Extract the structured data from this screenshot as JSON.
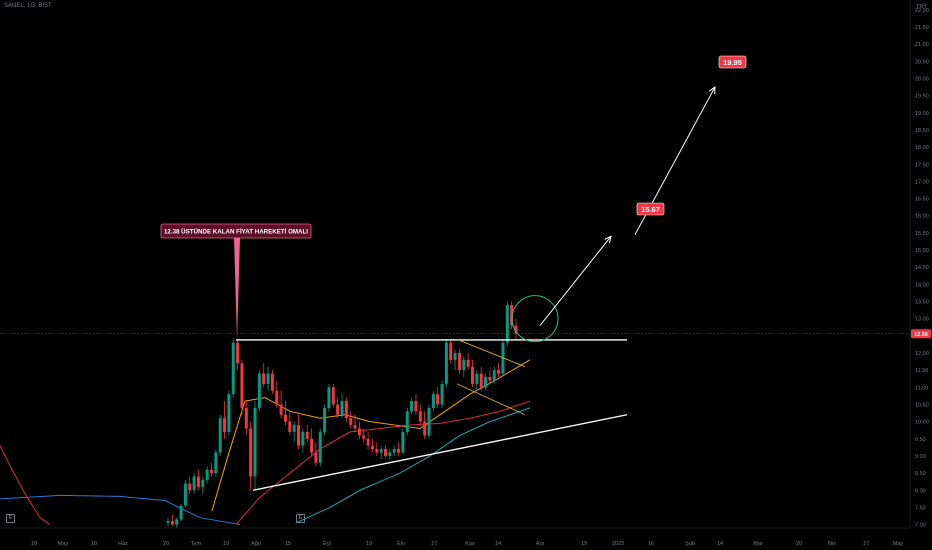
{
  "symbol_label": "SANEL, 1G, BIST",
  "currency": "TRY",
  "colors": {
    "background": "#000000",
    "axis_text": "#787b86",
    "candle_up": "#089981",
    "candle_down": "#f23645",
    "ma_short": "#f7a600",
    "ma_mid": "#e0294a",
    "ma_teal": "#1aa7b0",
    "ma_long": "#2b7bd6",
    "drawing": "#ffffff",
    "wedge": "#d9a62e",
    "circle": "#2bbf8f",
    "callout_bg": "#5c0f28",
    "callout_border": "#f06292",
    "target_bg": "#f23645",
    "price_line": "#f23645"
  },
  "chart_data": {
    "type": "candlestick",
    "y_axis": {
      "min": 6.9,
      "max": 22.2,
      "ticks": [
        "7.00",
        "7.50",
        "8.00",
        "8.50",
        "9.00",
        "9.50",
        "10.00",
        "10.50",
        "11.00",
        "11.50",
        "12.00",
        "12.50",
        "13.00",
        "13.50",
        "14.00",
        "14.50",
        "15.00",
        "15.50",
        "16.00",
        "16.50",
        "17.00",
        "17.50",
        "18.00",
        "18.50",
        "19.00",
        "19.50",
        "20.00",
        "20.50",
        "21.00",
        "21.50",
        "22.00"
      ]
    },
    "x_axis_labels": [
      "18",
      "May",
      "18",
      "Haz",
      "20",
      "Tem",
      "19",
      "Ağu",
      "15",
      "Eyl",
      "19",
      "Eki",
      "17",
      "Kas",
      "14",
      "Ara",
      "19",
      "2023",
      "16",
      "Şub",
      "14",
      "Mar",
      "20",
      "Nis",
      "17",
      "May"
    ],
    "last_price": "12.56",
    "callout_text": "12.38 ÜSTÜNDE KALAN FİYAT HAREKETİ OMALI",
    "targets": [
      "15.67",
      "19.95"
    ],
    "candles": [
      {
        "o": 7.05,
        "h": 7.2,
        "l": 6.95,
        "c": 7.1
      },
      {
        "o": 7.1,
        "h": 7.3,
        "l": 6.95,
        "c": 7.0
      },
      {
        "o": 7.0,
        "h": 7.2,
        "l": 6.92,
        "c": 7.15
      },
      {
        "o": 7.15,
        "h": 7.6,
        "l": 7.1,
        "c": 7.55
      },
      {
        "o": 7.55,
        "h": 8.3,
        "l": 7.5,
        "c": 8.2
      },
      {
        "o": 8.2,
        "h": 8.4,
        "l": 7.9,
        "c": 8.0
      },
      {
        "o": 8.0,
        "h": 8.5,
        "l": 7.9,
        "c": 8.4
      },
      {
        "o": 8.4,
        "h": 8.6,
        "l": 8.0,
        "c": 8.1
      },
      {
        "o": 8.1,
        "h": 8.4,
        "l": 7.9,
        "c": 8.3
      },
      {
        "o": 8.3,
        "h": 8.7,
        "l": 8.2,
        "c": 8.6
      },
      {
        "o": 8.6,
        "h": 8.8,
        "l": 8.4,
        "c": 8.5
      },
      {
        "o": 8.5,
        "h": 9.2,
        "l": 8.4,
        "c": 9.1
      },
      {
        "o": 9.1,
        "h": 10.2,
        "l": 9.0,
        "c": 10.1
      },
      {
        "o": 10.1,
        "h": 10.6,
        "l": 9.5,
        "c": 9.7
      },
      {
        "o": 9.7,
        "h": 10.9,
        "l": 9.6,
        "c": 10.8
      },
      {
        "o": 10.8,
        "h": 12.4,
        "l": 10.7,
        "c": 12.3
      },
      {
        "o": 12.3,
        "h": 12.4,
        "l": 11.5,
        "c": 11.7
      },
      {
        "o": 11.7,
        "h": 11.8,
        "l": 10.2,
        "c": 10.4
      },
      {
        "o": 10.4,
        "h": 10.6,
        "l": 9.6,
        "c": 9.8
      },
      {
        "o": 9.8,
        "h": 10.0,
        "l": 8.0,
        "c": 8.4
      },
      {
        "o": 8.4,
        "h": 10.6,
        "l": 8.0,
        "c": 10.4
      },
      {
        "o": 10.4,
        "h": 11.5,
        "l": 10.3,
        "c": 11.4
      },
      {
        "o": 11.4,
        "h": 11.7,
        "l": 11.0,
        "c": 11.1
      },
      {
        "o": 11.1,
        "h": 11.6,
        "l": 10.9,
        "c": 11.4
      },
      {
        "o": 11.4,
        "h": 11.5,
        "l": 10.8,
        "c": 10.9
      },
      {
        "o": 10.9,
        "h": 11.2,
        "l": 10.4,
        "c": 10.5
      },
      {
        "o": 10.5,
        "h": 10.9,
        "l": 10.1,
        "c": 10.2
      },
      {
        "o": 10.2,
        "h": 10.6,
        "l": 9.9,
        "c": 10.0
      },
      {
        "o": 10.0,
        "h": 10.3,
        "l": 9.6,
        "c": 9.7
      },
      {
        "o": 9.7,
        "h": 10.0,
        "l": 9.4,
        "c": 9.9
      },
      {
        "o": 9.9,
        "h": 10.2,
        "l": 9.2,
        "c": 9.3
      },
      {
        "o": 9.3,
        "h": 9.8,
        "l": 9.1,
        "c": 9.7
      },
      {
        "o": 9.7,
        "h": 9.9,
        "l": 9.4,
        "c": 9.5
      },
      {
        "o": 9.5,
        "h": 9.8,
        "l": 9.0,
        "c": 9.1
      },
      {
        "o": 9.1,
        "h": 9.4,
        "l": 8.7,
        "c": 8.8
      },
      {
        "o": 8.8,
        "h": 9.8,
        "l": 8.7,
        "c": 9.7
      },
      {
        "o": 9.7,
        "h": 10.5,
        "l": 9.6,
        "c": 10.4
      },
      {
        "o": 10.4,
        "h": 11.1,
        "l": 10.3,
        "c": 11.0
      },
      {
        "o": 11.0,
        "h": 11.1,
        "l": 10.4,
        "c": 10.5
      },
      {
        "o": 10.5,
        "h": 10.7,
        "l": 10.1,
        "c": 10.2
      },
      {
        "o": 10.2,
        "h": 10.8,
        "l": 10.1,
        "c": 10.6
      },
      {
        "o": 10.6,
        "h": 10.7,
        "l": 10.0,
        "c": 10.1
      },
      {
        "o": 10.1,
        "h": 10.3,
        "l": 9.8,
        "c": 9.9
      },
      {
        "o": 9.9,
        "h": 10.2,
        "l": 9.7,
        "c": 9.8
      },
      {
        "o": 9.8,
        "h": 10.0,
        "l": 9.5,
        "c": 9.6
      },
      {
        "o": 9.6,
        "h": 9.8,
        "l": 9.4,
        "c": 9.5
      },
      {
        "o": 9.5,
        "h": 9.7,
        "l": 9.2,
        "c": 9.3
      },
      {
        "o": 9.3,
        "h": 9.5,
        "l": 9.1,
        "c": 9.2
      },
      {
        "o": 9.2,
        "h": 9.4,
        "l": 9.0,
        "c": 9.1
      },
      {
        "o": 9.1,
        "h": 9.3,
        "l": 8.9,
        "c": 9.2
      },
      {
        "o": 9.2,
        "h": 9.3,
        "l": 8.95,
        "c": 9.0
      },
      {
        "o": 9.0,
        "h": 9.2,
        "l": 8.9,
        "c": 9.1
      },
      {
        "o": 9.1,
        "h": 9.3,
        "l": 9.0,
        "c": 9.2
      },
      {
        "o": 9.2,
        "h": 9.4,
        "l": 9.0,
        "c": 9.1
      },
      {
        "o": 9.1,
        "h": 9.8,
        "l": 9.05,
        "c": 9.7
      },
      {
        "o": 9.7,
        "h": 10.4,
        "l": 9.6,
        "c": 10.3
      },
      {
        "o": 10.3,
        "h": 10.7,
        "l": 10.2,
        "c": 10.6
      },
      {
        "o": 10.6,
        "h": 10.8,
        "l": 10.2,
        "c": 10.3
      },
      {
        "o": 10.3,
        "h": 10.5,
        "l": 9.9,
        "c": 10.0
      },
      {
        "o": 10.0,
        "h": 10.3,
        "l": 9.5,
        "c": 9.6
      },
      {
        "o": 9.6,
        "h": 10.5,
        "l": 9.5,
        "c": 10.4
      },
      {
        "o": 10.4,
        "h": 10.9,
        "l": 10.3,
        "c": 10.8
      },
      {
        "o": 10.8,
        "h": 11.0,
        "l": 10.4,
        "c": 10.5
      },
      {
        "o": 10.5,
        "h": 11.2,
        "l": 10.4,
        "c": 11.1
      },
      {
        "o": 11.1,
        "h": 12.4,
        "l": 11.0,
        "c": 12.3
      },
      {
        "o": 12.3,
        "h": 12.4,
        "l": 11.7,
        "c": 11.8
      },
      {
        "o": 11.8,
        "h": 12.1,
        "l": 11.5,
        "c": 12.0
      },
      {
        "o": 12.0,
        "h": 12.1,
        "l": 11.4,
        "c": 11.5
      },
      {
        "o": 11.5,
        "h": 11.9,
        "l": 11.3,
        "c": 11.8
      },
      {
        "o": 11.8,
        "h": 12.0,
        "l": 11.5,
        "c": 11.6
      },
      {
        "o": 11.6,
        "h": 11.8,
        "l": 11.0,
        "c": 11.1
      },
      {
        "o": 11.1,
        "h": 11.5,
        "l": 10.9,
        "c": 11.4
      },
      {
        "o": 11.4,
        "h": 11.6,
        "l": 10.9,
        "c": 11.0
      },
      {
        "o": 11.0,
        "h": 11.4,
        "l": 10.9,
        "c": 11.3
      },
      {
        "o": 11.3,
        "h": 11.5,
        "l": 11.1,
        "c": 11.2
      },
      {
        "o": 11.2,
        "h": 11.6,
        "l": 11.1,
        "c": 11.5
      },
      {
        "o": 11.5,
        "h": 11.7,
        "l": 11.3,
        "c": 11.4
      },
      {
        "o": 11.4,
        "h": 12.4,
        "l": 11.35,
        "c": 12.3
      },
      {
        "o": 12.3,
        "h": 13.5,
        "l": 12.2,
        "c": 13.4
      },
      {
        "o": 13.4,
        "h": 13.5,
        "l": 12.7,
        "c": 12.8
      },
      {
        "o": 12.8,
        "h": 13.0,
        "l": 12.4,
        "c": 12.56
      }
    ]
  }
}
